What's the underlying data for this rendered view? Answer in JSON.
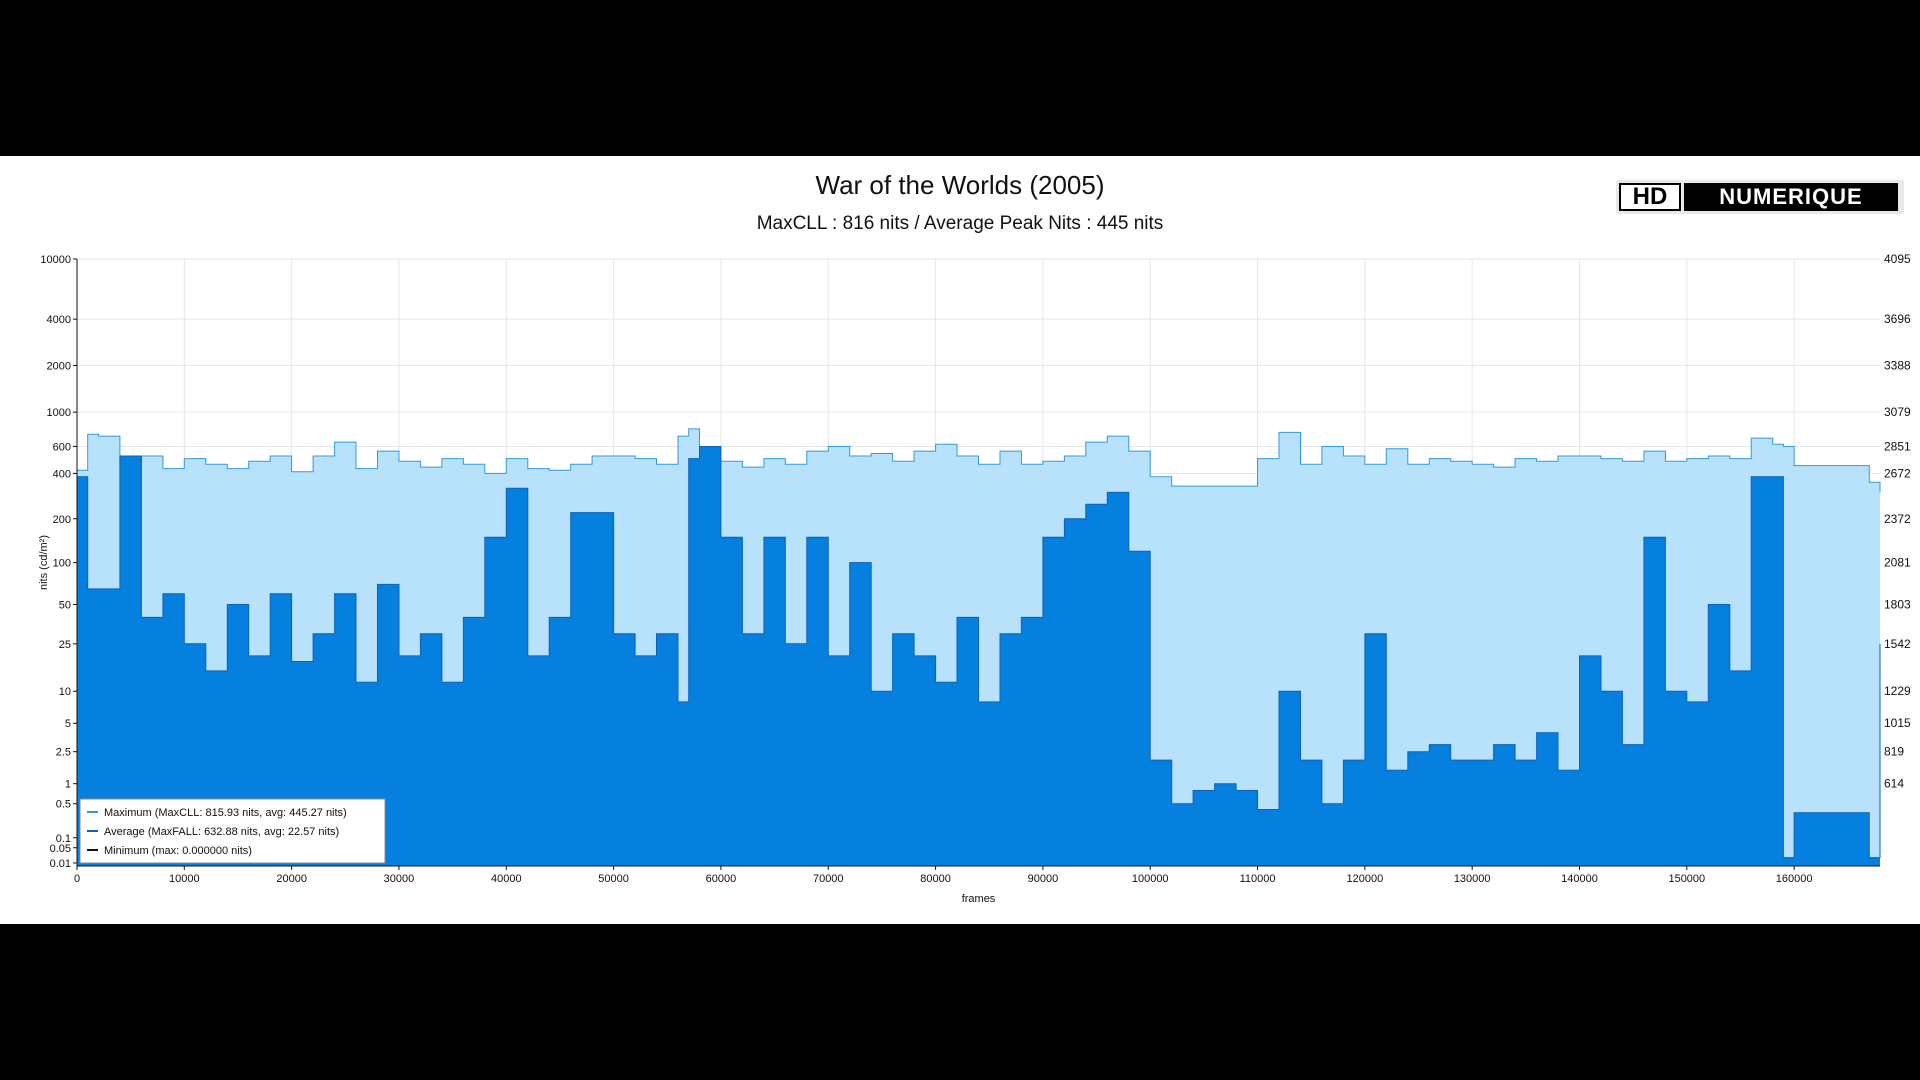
{
  "logo": {
    "part1": "HD",
    "part2": "NUMERIQUE"
  },
  "chart_data": {
    "type": "area",
    "title": "War of the Worlds (2005)",
    "subtitle": "MaxCLL : 816 nits / Average Peak Nits : 445 nits",
    "xlabel": "frames",
    "ylabel": "nits (cd/m²)",
    "xlim": [
      0,
      168000
    ],
    "ylim": [
      0.006,
      10000
    ],
    "yscale": "log-like (PQ)",
    "x_ticks": [
      0,
      10000,
      20000,
      30000,
      40000,
      50000,
      60000,
      70000,
      80000,
      90000,
      100000,
      110000,
      120000,
      130000,
      140000,
      150000,
      160000
    ],
    "y_ticks": [
      {
        "value": 10000,
        "label": "10000",
        "code": "4095"
      },
      {
        "value": 4000,
        "label": "4000",
        "code": "3696"
      },
      {
        "value": 2000,
        "label": "2000",
        "code": "3388"
      },
      {
        "value": 1000,
        "label": "1000",
        "code": "3079"
      },
      {
        "value": 600,
        "label": "600",
        "code": "2851"
      },
      {
        "value": 400,
        "label": "400",
        "code": "2672"
      },
      {
        "value": 200,
        "label": "200",
        "code": "2372"
      },
      {
        "value": 100,
        "label": "100",
        "code": "2081"
      },
      {
        "value": 50,
        "label": "50",
        "code": "1803"
      },
      {
        "value": 25,
        "label": "25",
        "code": "1542"
      },
      {
        "value": 10,
        "label": "10",
        "code": "1229"
      },
      {
        "value": 5,
        "label": "5",
        "code": "1015"
      },
      {
        "value": 2.5,
        "label": "2.5",
        "code": "819"
      },
      {
        "value": 1,
        "label": "1",
        "code": "614"
      },
      {
        "value": 0.5,
        "label": "0.5",
        "code": ""
      },
      {
        "value": 0.1,
        "label": "0.1",
        "code": ""
      },
      {
        "value": 0.05,
        "label": "0.05",
        "code": ""
      },
      {
        "value": 0.01,
        "label": "0.01",
        "code": ""
      }
    ],
    "grid": true,
    "legend_position": "bottom-left",
    "legend": [
      {
        "label": "Maximum (MaxCLL: 815.93 nits, avg: 445.27 nits)",
        "color": "#3399dd"
      },
      {
        "label": "Average (MaxFALL: 632.88 nits, avg: 22.57 nits)",
        "color": "#0a63b8"
      },
      {
        "label": "Minimum (max: 0.000000 nits)",
        "color": "#111111"
      }
    ],
    "series": [
      {
        "name": "Maximum (MaxCLL: 815.93 nits, avg: 445.27 nits)",
        "color": "#3399dd",
        "fill": "#b8e2fb",
        "x": [
          0,
          1000,
          2000,
          4000,
          6000,
          8000,
          10000,
          12000,
          14000,
          16000,
          18000,
          20000,
          22000,
          24000,
          26000,
          28000,
          30000,
          32000,
          34000,
          36000,
          38000,
          40000,
          42000,
          44000,
          46000,
          48000,
          50000,
          52000,
          54000,
          56000,
          57000,
          58000,
          60000,
          62000,
          64000,
          66000,
          68000,
          70000,
          72000,
          74000,
          76000,
          78000,
          80000,
          82000,
          84000,
          86000,
          88000,
          90000,
          92000,
          94000,
          96000,
          98000,
          100000,
          102000,
          104000,
          106000,
          108000,
          110000,
          112000,
          114000,
          116000,
          118000,
          120000,
          122000,
          124000,
          126000,
          128000,
          130000,
          132000,
          134000,
          136000,
          138000,
          140000,
          142000,
          144000,
          146000,
          148000,
          150000,
          152000,
          154000,
          156000,
          158000,
          159000,
          160000,
          162000,
          164000,
          166000,
          167000,
          168000
        ],
        "y": [
          420,
          720,
          700,
          480,
          520,
          430,
          500,
          460,
          430,
          480,
          520,
          410,
          520,
          640,
          430,
          560,
          480,
          440,
          500,
          460,
          400,
          500,
          430,
          420,
          460,
          520,
          520,
          500,
          460,
          700,
          780,
          560,
          480,
          440,
          500,
          460,
          560,
          600,
          520,
          540,
          480,
          560,
          620,
          520,
          460,
          560,
          460,
          480,
          520,
          640,
          700,
          560,
          380,
          330,
          330,
          330,
          330,
          500,
          740,
          460,
          600,
          520,
          460,
          580,
          460,
          500,
          480,
          460,
          440,
          500,
          480,
          520,
          520,
          500,
          480,
          560,
          480,
          500,
          520,
          500,
          680,
          620,
          600,
          450,
          450,
          450,
          450,
          350,
          300
        ]
      },
      {
        "name": "Average (MaxFALL: 632.88 nits, avg: 22.57 nits)",
        "color": "#0a63b8",
        "fill": "#0680df",
        "x": [
          0,
          1000,
          2000,
          4000,
          6000,
          8000,
          10000,
          12000,
          14000,
          16000,
          18000,
          20000,
          22000,
          24000,
          26000,
          28000,
          30000,
          32000,
          34000,
          36000,
          38000,
          40000,
          42000,
          44000,
          46000,
          48000,
          50000,
          52000,
          54000,
          56000,
          57000,
          58000,
          60000,
          62000,
          64000,
          66000,
          68000,
          70000,
          72000,
          74000,
          76000,
          78000,
          80000,
          82000,
          84000,
          86000,
          88000,
          90000,
          92000,
          94000,
          96000,
          98000,
          100000,
          102000,
          104000,
          106000,
          108000,
          110000,
          112000,
          114000,
          116000,
          118000,
          120000,
          122000,
          124000,
          126000,
          128000,
          130000,
          132000,
          134000,
          136000,
          138000,
          140000,
          142000,
          144000,
          146000,
          148000,
          150000,
          152000,
          154000,
          156000,
          158000,
          159000,
          160000,
          162000,
          164000,
          166000,
          167000,
          168000
        ],
        "y": [
          380,
          65,
          65,
          520,
          40,
          60,
          25,
          15,
          50,
          20,
          60,
          18,
          30,
          60,
          12,
          70,
          20,
          30,
          12,
          40,
          150,
          320,
          20,
          40,
          220,
          220,
          30,
          20,
          30,
          8,
          500,
          600,
          150,
          30,
          150,
          25,
          150,
          20,
          100,
          10,
          30,
          20,
          12,
          40,
          8,
          30,
          40,
          150,
          200,
          250,
          300,
          120,
          2,
          0.5,
          0.8,
          1,
          0.8,
          0.4,
          10,
          2,
          0.5,
          2,
          30,
          1.5,
          2.5,
          3,
          2,
          2,
          3,
          2,
          4,
          1.5,
          20,
          10,
          3,
          150,
          10,
          8,
          50,
          15,
          380,
          380,
          0.02,
          0.35,
          0.35,
          0.35,
          0.35,
          0.02,
          25
        ]
      },
      {
        "name": "Minimum (max: 0.000000 nits)",
        "color": "#111111",
        "x": [
          0,
          168000
        ],
        "y": [
          0,
          0
        ]
      }
    ]
  }
}
